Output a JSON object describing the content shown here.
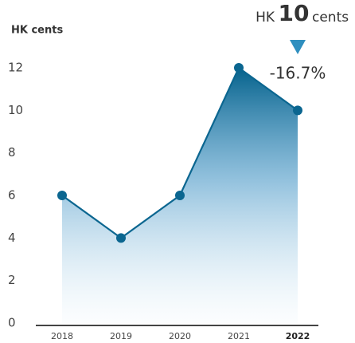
{
  "chart_data": {
    "type": "line",
    "y_label": "HK cents",
    "headline": {
      "prefix": "HK",
      "value": 10,
      "unit": "cents"
    },
    "change_label": "-16.7%",
    "categories": [
      "2018",
      "2019",
      "2020",
      "2021",
      "2022"
    ],
    "series": [
      {
        "name": "HK cents",
        "color": "#0b6690",
        "values": [
          6,
          4,
          6,
          12,
          10
        ]
      }
    ],
    "ylim": [
      0,
      12
    ],
    "yticks": [
      0,
      2,
      4,
      6,
      8,
      10,
      12
    ],
    "grid": false
  }
}
